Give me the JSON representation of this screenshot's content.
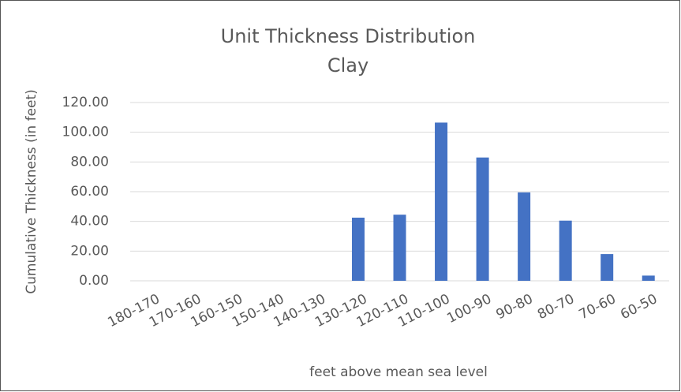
{
  "chart_data": {
    "type": "bar",
    "title": "Unit Thickness Distribution",
    "subtitle": "Clay",
    "x_label": "feet above mean sea level",
    "y_label": "Cumulative Thickness (in feet)",
    "categories": [
      "180-170",
      "170-160",
      "160-150",
      "150-140",
      "140-130",
      "130-120",
      "120-110",
      "110-100",
      "100-90",
      "90-80",
      "80-70",
      "70-60",
      "60-50"
    ],
    "values": [
      0,
      0,
      0,
      0,
      0,
      42.5,
      44.5,
      106.5,
      83,
      59.5,
      40.5,
      18,
      3.5
    ],
    "color": "#4472c4",
    "ylim": [
      0,
      120
    ],
    "yticks": [
      {
        "value": 0,
        "label": "0.00"
      },
      {
        "value": 20,
        "label": "20.00"
      },
      {
        "value": 40,
        "label": "40.00"
      },
      {
        "value": 60,
        "label": "60.00"
      },
      {
        "value": 80,
        "label": "80.00"
      },
      {
        "value": 100,
        "label": "100.00"
      },
      {
        "value": 120,
        "label": "120.00"
      }
    ],
    "grid": true
  }
}
